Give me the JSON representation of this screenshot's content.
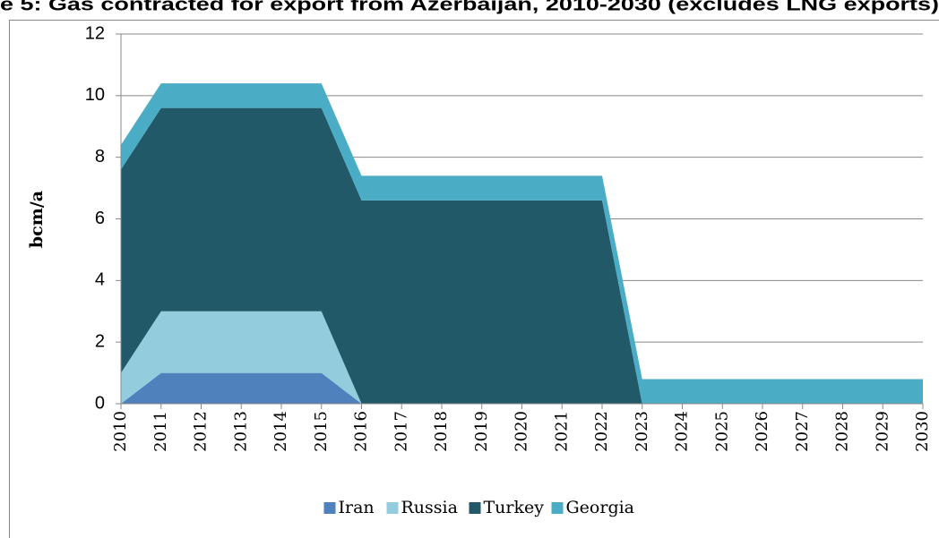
{
  "chart_data": {
    "type": "stacked_area",
    "title": "e 5: Gas contracted for export from Azerbaijan, 2010-2030 (excludes LNG exports)",
    "y_label": "bcm/a",
    "x": [
      2010,
      2011,
      2012,
      2013,
      2014,
      2015,
      2016,
      2017,
      2018,
      2019,
      2020,
      2021,
      2022,
      2023,
      2024,
      2025,
      2026,
      2027,
      2028,
      2029,
      2030
    ],
    "xlim": [
      2010,
      2030
    ],
    "ylim": [
      0,
      12
    ],
    "yticks": [
      0,
      2,
      4,
      6,
      8,
      10,
      12
    ],
    "grid": true,
    "series": [
      {
        "name": "Iran",
        "color": "#4f81bd",
        "values": [
          0,
          1,
          1,
          1,
          1,
          1,
          0,
          0,
          0,
          0,
          0,
          0,
          0,
          0,
          0,
          0,
          0,
          0,
          0,
          0,
          0
        ]
      },
      {
        "name": "Russia",
        "color": "#93cddd",
        "values": [
          1,
          2,
          2,
          2,
          2,
          2,
          0,
          0,
          0,
          0,
          0,
          0,
          0,
          0,
          0,
          0,
          0,
          0,
          0,
          0,
          0
        ]
      },
      {
        "name": "Turkey",
        "color": "#215968",
        "values": [
          6.6,
          6.6,
          6.6,
          6.6,
          6.6,
          6.6,
          6.6,
          6.6,
          6.6,
          6.6,
          6.6,
          6.6,
          6.6,
          0,
          0,
          0,
          0,
          0,
          0,
          0,
          0
        ]
      },
      {
        "name": "Georgia",
        "color": "#4bacc6",
        "values": [
          0.8,
          0.8,
          0.8,
          0.8,
          0.8,
          0.8,
          0.8,
          0.8,
          0.8,
          0.8,
          0.8,
          0.8,
          0.8,
          0.8,
          0.8,
          0.8,
          0.8,
          0.8,
          0.8,
          0.8,
          0.8
        ]
      }
    ],
    "legend": "bottom"
  }
}
